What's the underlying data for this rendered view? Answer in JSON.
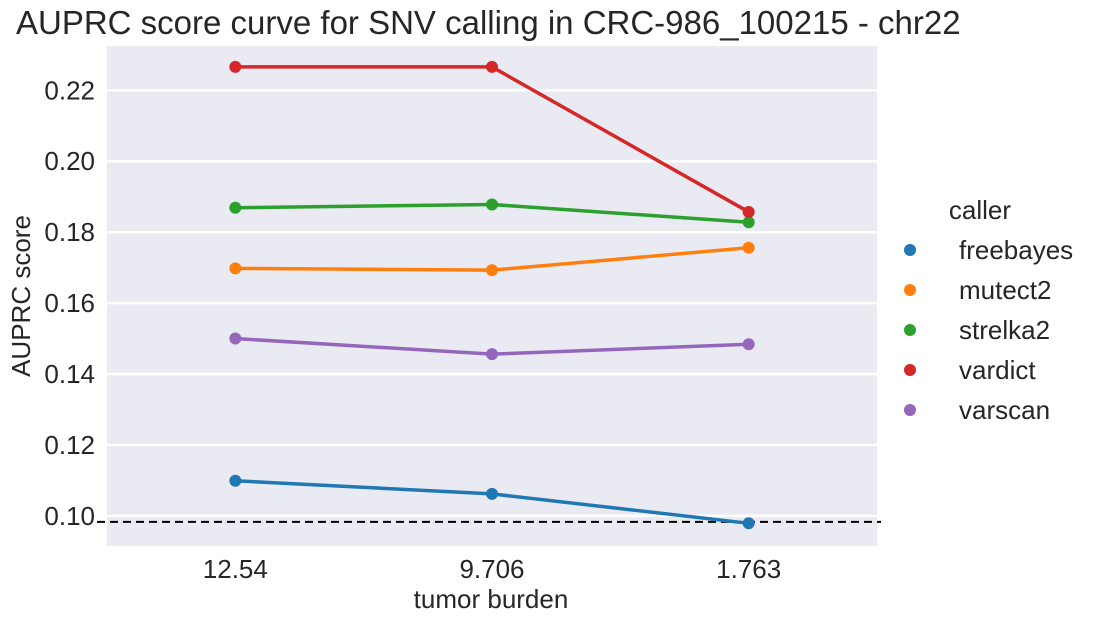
{
  "chart_data": {
    "type": "line",
    "title": "AUPRC score curve for SNV calling in CRC-986_100215 - chr22",
    "xlabel": "tumor burden",
    "ylabel": "AUPRC score",
    "categories": [
      "12.54",
      "9.706",
      "1.763"
    ],
    "ylim": [
      0.0915,
      0.2325
    ],
    "yticks": [
      0.1,
      0.12,
      0.14,
      0.16,
      0.18,
      0.2,
      0.22
    ],
    "ytick_labels": [
      "0.10",
      "0.12",
      "0.14",
      "0.16",
      "0.18",
      "0.20",
      "0.22"
    ],
    "grid": true,
    "legend": {
      "title": "caller",
      "position": "right"
    },
    "baseline": {
      "value": 0.0983,
      "style": "dashed",
      "color": "#000000"
    },
    "series": [
      {
        "name": "freebayes",
        "color": "#1f77b4",
        "values": [
          0.1099,
          0.1062,
          0.0979
        ]
      },
      {
        "name": "mutect2",
        "color": "#ff7f0e",
        "values": [
          0.1698,
          0.1693,
          0.1756
        ]
      },
      {
        "name": "strelka2",
        "color": "#2ca02c",
        "values": [
          0.1869,
          0.1878,
          0.1828
        ]
      },
      {
        "name": "vardict",
        "color": "#d62728",
        "values": [
          0.2266,
          0.2266,
          0.1857
        ]
      },
      {
        "name": "varscan",
        "color": "#9467bd",
        "values": [
          0.15,
          0.1456,
          0.1484
        ]
      }
    ],
    "plot_background": "#eaeaf2",
    "grid_color": "#ffffff"
  }
}
